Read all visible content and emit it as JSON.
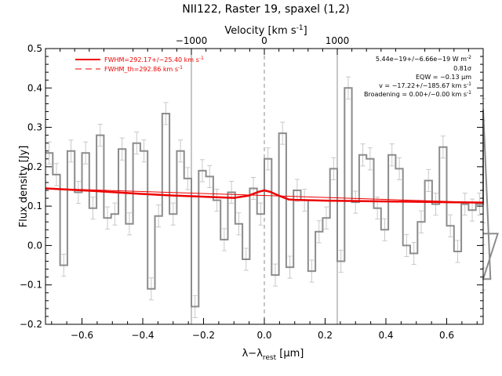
{
  "chart_data": {
    "type": "line",
    "title": "NII122, Raster 19, spaxel (1,2)",
    "xlabel_main": "λ−λ",
    "xlabel_sub": "rest",
    "xlabel_unit": " [μm]",
    "ylabel": "Flux density [Jy]",
    "top_axis_label": "Velocity [km s",
    "top_axis_label_sup": "-1",
    "top_axis_label_end": "]",
    "xlim": [
      -0.72,
      0.72
    ],
    "ylim": [
      -0.2,
      0.5
    ],
    "x_ticks": [
      -0.6,
      -0.4,
      -0.2,
      0.0,
      0.2,
      0.4,
      0.6
    ],
    "x_tick_labels": [
      "−0.6",
      "−0.4",
      "−0.2",
      "0.0",
      "0.2",
      "0.4",
      "0.6"
    ],
    "y_ticks": [
      -0.2,
      -0.1,
      0.0,
      0.1,
      0.2,
      0.3,
      0.4,
      0.5
    ],
    "y_tick_labels": [
      "−0.2",
      "−0.1",
      "0.0",
      "0.1",
      "0.2",
      "0.3",
      "0.4",
      "0.5"
    ],
    "top_ticks_um": [
      -0.24,
      0.0,
      0.24
    ],
    "top_tick_labels": [
      "−1000",
      "0",
      "1000"
    ],
    "vertical_lines_um": [
      -0.24,
      0.24
    ],
    "center_dashed_um": 0.0,
    "spectrum_step": {
      "x_start": -0.72,
      "x_step": 0.024,
      "y": [
        0.235,
        0.18,
        -0.05,
        0.24,
        0.135,
        0.235,
        0.095,
        0.28,
        0.07,
        0.08,
        0.245,
        0.055,
        0.26,
        0.24,
        -0.11,
        0.075,
        0.335,
        0.08,
        0.24,
        0.17,
        -0.155,
        0.19,
        0.175,
        0.115,
        0.015,
        0.135,
        0.055,
        -0.035,
        0.145,
        0.08,
        0.22,
        -0.075,
        0.285,
        -0.055,
        0.14,
        0.115,
        -0.065,
        0.035,
        0.07,
        0.195,
        -0.04,
        0.4,
        0.11,
        0.23,
        0.22,
        0.095,
        0.04,
        0.23,
        0.195,
        0.0,
        -0.02,
        0.06,
        0.165,
        0.105,
        0.25,
        0.05,
        -0.015,
        0.105,
        0.09,
        0.105,
        0.345,
        -0.085,
        0.03
      ],
      "err": 0.028
    },
    "fit_line": {
      "x": [
        -0.72,
        -0.55,
        -0.4,
        -0.3,
        -0.2,
        -0.1,
        -0.05,
        -0.02,
        0.0,
        0.02,
        0.05,
        0.08,
        0.1,
        0.2,
        0.4,
        0.6,
        0.72
      ],
      "y": [
        0.145,
        0.138,
        0.131,
        0.127,
        0.124,
        0.121,
        0.127,
        0.136,
        0.14,
        0.136,
        0.126,
        0.117,
        0.116,
        0.114,
        0.112,
        0.11,
        0.109
      ]
    },
    "baseline_line": {
      "x": [
        -0.72,
        0.72
      ],
      "y": [
        0.145,
        0.109
      ]
    },
    "legend": [
      {
        "label": "FWHM=292.17+/−25.40 km s",
        "sup": "-1",
        "style": "solid"
      },
      {
        "label": "FWHM_th=292.86 km s",
        "sup": "-1",
        "style": "dashed"
      }
    ],
    "annotations": [
      {
        "text": "5.44e−19+/−6.66e−19 W m",
        "sup": "-2"
      },
      {
        "text": "0.81σ",
        "sup": ""
      },
      {
        "text": "EQW = −0.13 μm",
        "sup": ""
      },
      {
        "text": "v = −17.22+/−185.67 km s",
        "sup": "-1"
      },
      {
        "text": "Broadening = 0.00+/−0.00 km s",
        "sup": "-1"
      }
    ],
    "colors": {
      "spectrum": "#8c8c8c",
      "errorbar": "#c8c8c8",
      "fit": "#ee0000",
      "vlines": "#8c8c8c",
      "axis": "#000000"
    }
  }
}
